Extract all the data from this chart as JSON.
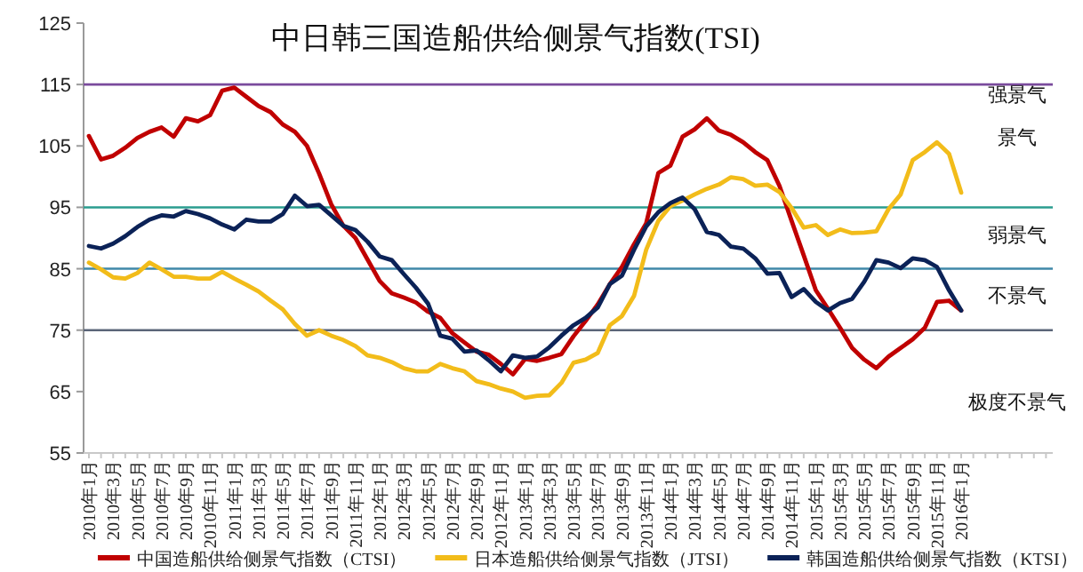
{
  "chart_data": {
    "type": "line",
    "title": "中日韩三国造船供给侧景气指数(TSI)",
    "categories": [
      "2010年1月",
      null,
      "2010年3月",
      null,
      "2010年5月",
      null,
      "2010年7月",
      null,
      "2010年9月",
      null,
      "2010年11月",
      null,
      "2011年1月",
      null,
      "2011年3月",
      null,
      "2011年5月",
      null,
      "2011年7月",
      null,
      "2011年9月",
      null,
      "2011年11月",
      null,
      "2012年1月",
      null,
      "2012年3月",
      null,
      "2012年5月",
      null,
      "2012年7月",
      null,
      "2012年9月",
      null,
      "2012年11月",
      null,
      "2013年1月",
      null,
      "2013年3月",
      null,
      "2013年5月",
      null,
      "2013年7月",
      null,
      "2013年9月",
      null,
      "2013年11月",
      null,
      "2014年1月",
      null,
      "2014年3月",
      null,
      "2014年5月",
      null,
      "2014年7月",
      null,
      "2014年9月",
      null,
      "2014年11月",
      null,
      "2015年1月",
      null,
      "2015年3月",
      null,
      "2015年5月",
      null,
      "2015年7月",
      null,
      "2015年9月",
      null,
      "2015年11月",
      null,
      "2016年1月",
      null,
      null,
      null,
      null,
      null,
      null,
      null
    ],
    "series": [
      {
        "name": "中国造船供给侧景气指数（CTSI）",
        "color": "#c00000",
        "values": [
          106.6,
          102.8,
          103.4,
          104.7,
          106.3,
          107.3,
          108.0,
          106.5,
          109.5,
          109.0,
          110.0,
          114.0,
          114.5,
          113.0,
          111.5,
          110.5,
          108.5,
          107.3,
          105.0,
          100.5,
          95.5,
          92.0,
          90.0,
          86.5,
          83.0,
          81.0,
          80.3,
          79.5,
          78.0,
          77.0,
          74.5,
          73.0,
          71.5,
          71.0,
          69.5,
          67.8,
          70.3,
          70.0,
          70.5,
          71.1,
          74.0,
          76.5,
          79.2,
          82.5,
          85.3,
          89.0,
          92.4,
          100.6,
          101.8,
          106.5,
          107.7,
          109.5,
          107.5,
          106.8,
          105.6,
          104.0,
          102.7,
          98.5,
          92.8,
          87.2,
          81.5,
          78.5,
          75.4,
          72.1,
          70.2,
          68.8,
          70.7,
          72.1,
          73.5,
          75.4,
          79.6,
          79.8,
          78.2,
          null,
          null,
          null,
          null,
          null,
          null,
          null
        ]
      },
      {
        "name": "日本造船供给侧景气指数（JTSI）",
        "color": "#f2bc1a",
        "values": [
          86.0,
          84.9,
          83.6,
          83.4,
          84.3,
          86.0,
          84.9,
          83.7,
          83.7,
          83.4,
          83.4,
          84.5,
          83.4,
          82.4,
          81.3,
          79.8,
          78.4,
          76.0,
          74.1,
          75.0,
          74.1,
          73.4,
          72.4,
          70.9,
          70.5,
          69.8,
          68.8,
          68.3,
          68.3,
          69.5,
          68.8,
          68.3,
          66.7,
          66.2,
          65.5,
          65.0,
          64.0,
          64.3,
          64.4,
          66.4,
          69.7,
          70.2,
          71.3,
          75.8,
          77.3,
          80.6,
          88.1,
          92.8,
          95.2,
          96.1,
          97.1,
          98.0,
          98.7,
          99.9,
          99.6,
          98.5,
          98.7,
          97.5,
          94.9,
          91.7,
          92.1,
          90.5,
          91.4,
          90.8,
          90.9,
          91.1,
          94.7,
          97.1,
          102.7,
          104.0,
          105.6,
          103.7,
          97.4,
          null,
          null,
          null,
          null,
          null,
          null,
          null
        ]
      },
      {
        "name": "韩国造船供给侧景气指数（KTSI）",
        "color": "#0b2257",
        "values": [
          88.7,
          88.3,
          89.1,
          90.3,
          91.8,
          93.0,
          93.7,
          93.5,
          94.4,
          93.9,
          93.2,
          92.2,
          91.4,
          93.0,
          92.7,
          92.7,
          93.9,
          96.9,
          95.2,
          95.4,
          93.7,
          92.0,
          91.3,
          89.4,
          87.0,
          86.4,
          84.1,
          81.9,
          79.3,
          74.1,
          73.6,
          71.5,
          71.7,
          70.1,
          68.3,
          70.9,
          70.5,
          70.7,
          72.2,
          74.1,
          75.8,
          77.0,
          78.7,
          82.5,
          83.9,
          88.1,
          91.9,
          94.2,
          95.7,
          96.6,
          94.7,
          91.0,
          90.5,
          88.6,
          88.3,
          86.7,
          84.2,
          84.3,
          80.4,
          81.7,
          79.6,
          78.2,
          79.4,
          80.1,
          82.9,
          86.4,
          86.0,
          85.1,
          86.7,
          86.4,
          85.3,
          81.5,
          78.2,
          null,
          null,
          null,
          null,
          null,
          null,
          null
        ]
      }
    ],
    "ylim": [
      55,
      125
    ],
    "yticks": [
      55,
      65,
      75,
      85,
      95,
      105,
      115,
      125
    ],
    "ref_lines": [
      {
        "axis": "y",
        "value": 115,
        "color": "#7a4a9c"
      },
      {
        "axis": "y",
        "value": 95,
        "color": "#2a9d8f"
      },
      {
        "axis": "y",
        "value": 85,
        "color": "#3f88a8"
      },
      {
        "axis": "y",
        "value": 75,
        "color": "#5b6578"
      }
    ],
    "annotations": [
      "强景气",
      "景气",
      "弱景气",
      "不景气",
      "极度不景气"
    ],
    "legend": "bottom"
  }
}
